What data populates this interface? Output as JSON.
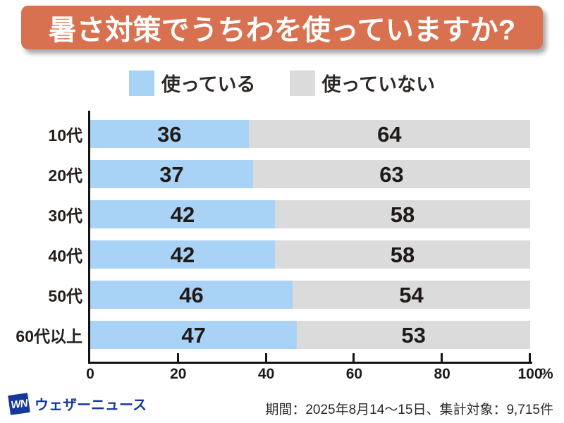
{
  "title": "暑さ対策でうちわを使っていますか?",
  "legend": {
    "using_label": "使っている",
    "not_using_label": "使っていない"
  },
  "footer": {
    "logo_mark": "WN",
    "logo_text": "ウェザーニュース",
    "note": "期間：2025年8月14～15日、集計対象：9,715件"
  },
  "colors": {
    "banner": "#d8714f",
    "using": "#a9d3f6",
    "not_using": "#dbdbdb",
    "logo": "#16389e",
    "axis": "#161412",
    "text": "#241e1b"
  },
  "chart_data": {
    "type": "bar",
    "orientation": "horizontal",
    "stacked": true,
    "title": "暑さ対策でうちわを使っていますか?",
    "categories": [
      "10代",
      "20代",
      "30代",
      "40代",
      "50代",
      "60代以上"
    ],
    "series": [
      {
        "name": "使っている",
        "color": "#a9d3f6",
        "values": [
          36,
          37,
          42,
          42,
          46,
          47
        ]
      },
      {
        "name": "使っていない",
        "color": "#dbdbdb",
        "values": [
          64,
          63,
          58,
          58,
          54,
          53
        ]
      }
    ],
    "xlim": [
      0,
      100
    ],
    "x_ticks": [
      0,
      20,
      40,
      60,
      80,
      100
    ],
    "x_unit": "%",
    "value_labels": true,
    "legend_position": "top",
    "grid": false
  }
}
